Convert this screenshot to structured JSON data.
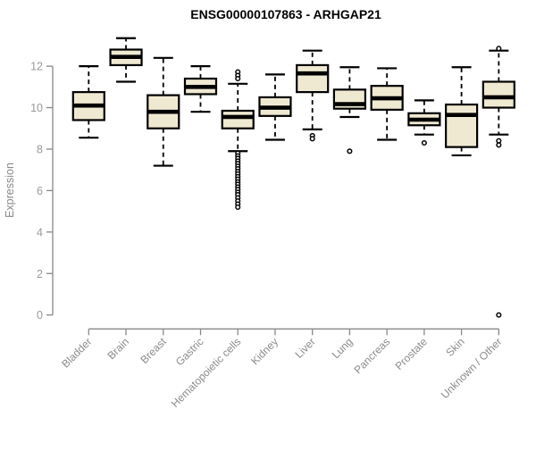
{
  "colors": {
    "box_fill": "#F0E9D2",
    "box_stroke": "#000000",
    "median": "#000000",
    "whisker": "#000000",
    "outlier_stroke": "#000000",
    "axis": "#888888",
    "tick_label": "#999999",
    "category_label": "#8a8a8a",
    "title": "#000000",
    "background": "#ffffff"
  },
  "chart_data": {
    "type": "boxplot",
    "title": "ENSG00000107863 - ARHGAP21",
    "xlabel": "",
    "ylabel": "Expression",
    "ylim": [
      0,
      13.6
    ],
    "yticks": [
      0,
      2,
      4,
      6,
      8,
      10,
      12
    ],
    "grid": false,
    "legend": null,
    "categories": [
      "Bladder",
      "Brain",
      "Breast",
      "Gastric",
      "Hematopoietic cells",
      "Kidney",
      "Liver",
      "Lung",
      "Pancreas",
      "Prostate",
      "Skin",
      "Unknown / Other"
    ],
    "series": [
      {
        "name": "Bladder",
        "low": 8.55,
        "q1": 9.4,
        "median": 10.1,
        "q3": 10.75,
        "high": 12.0,
        "outliers": []
      },
      {
        "name": "Brain",
        "low": 11.25,
        "q1": 12.05,
        "median": 12.45,
        "q3": 12.8,
        "high": 13.35,
        "outliers": []
      },
      {
        "name": "Breast",
        "low": 7.2,
        "q1": 9.0,
        "median": 9.8,
        "q3": 10.6,
        "high": 12.4,
        "outliers": []
      },
      {
        "name": "Gastric",
        "low": 9.8,
        "q1": 10.65,
        "median": 11.0,
        "q3": 11.4,
        "high": 12.0,
        "outliers": []
      },
      {
        "name": "Hematopoietic cells",
        "low": 7.9,
        "q1": 9.0,
        "median": 9.55,
        "q3": 9.85,
        "high": 11.15,
        "outliers": [
          11.72,
          11.55,
          11.4,
          7.8,
          7.67,
          7.55,
          7.42,
          7.3,
          7.17,
          7.05,
          6.92,
          6.8,
          6.67,
          6.55,
          6.42,
          6.3,
          6.17,
          6.05,
          5.92,
          5.8,
          5.65,
          5.5,
          5.35,
          5.2
        ]
      },
      {
        "name": "Kidney",
        "low": 8.45,
        "q1": 9.6,
        "median": 10.0,
        "q3": 10.5,
        "high": 11.6,
        "outliers": []
      },
      {
        "name": "Liver",
        "low": 8.95,
        "q1": 10.75,
        "median": 11.65,
        "q3": 12.05,
        "high": 12.75,
        "outliers": [
          8.65,
          8.5
        ]
      },
      {
        "name": "Lung",
        "low": 9.55,
        "q1": 9.95,
        "median": 10.17,
        "q3": 10.87,
        "high": 11.95,
        "outliers": [
          7.9
        ]
      },
      {
        "name": "Pancreas",
        "low": 8.45,
        "q1": 9.9,
        "median": 10.45,
        "q3": 11.05,
        "high": 11.9,
        "outliers": []
      },
      {
        "name": "Prostate",
        "low": 8.7,
        "q1": 9.15,
        "median": 9.42,
        "q3": 9.73,
        "high": 10.35,
        "outliers": [
          8.3
        ]
      },
      {
        "name": "Skin",
        "low": 7.7,
        "q1": 8.1,
        "median": 9.65,
        "q3": 10.15,
        "high": 11.95,
        "outliers": []
      },
      {
        "name": "Unknown / Other",
        "low": 8.7,
        "q1": 10.0,
        "median": 10.5,
        "q3": 11.25,
        "high": 12.75,
        "outliers": [
          12.85,
          8.4,
          8.2,
          0.0
        ]
      }
    ]
  }
}
